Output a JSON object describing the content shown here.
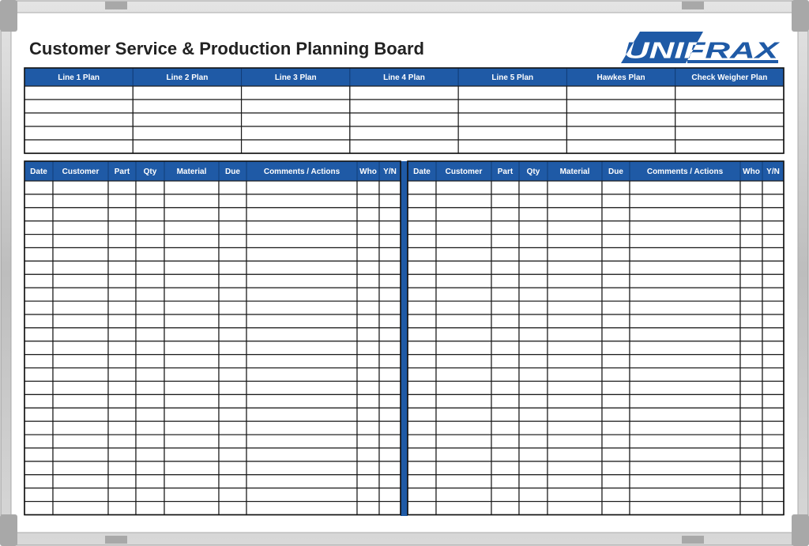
{
  "header": {
    "title": "Customer Service & Production Planning Board",
    "logo": "UNIFRAX"
  },
  "top_table": {
    "columns": [
      "Line 1 Plan",
      "Line 2 Plan",
      "Line 3 Plan",
      "Line 4 Plan",
      "Line 5 Plan",
      "Hawkes Plan",
      "Check Weigher Plan"
    ]
  },
  "left_table": {
    "columns": [
      "Date",
      "Customer",
      "Part",
      "Qty",
      "Material",
      "Due",
      "Comments / Actions",
      "Who",
      "Y/N"
    ]
  },
  "right_table": {
    "columns": [
      "Date",
      "Customer",
      "Part",
      "Qty",
      "Material",
      "Due",
      "Comments / Actions",
      "Who",
      "Y/N"
    ]
  }
}
